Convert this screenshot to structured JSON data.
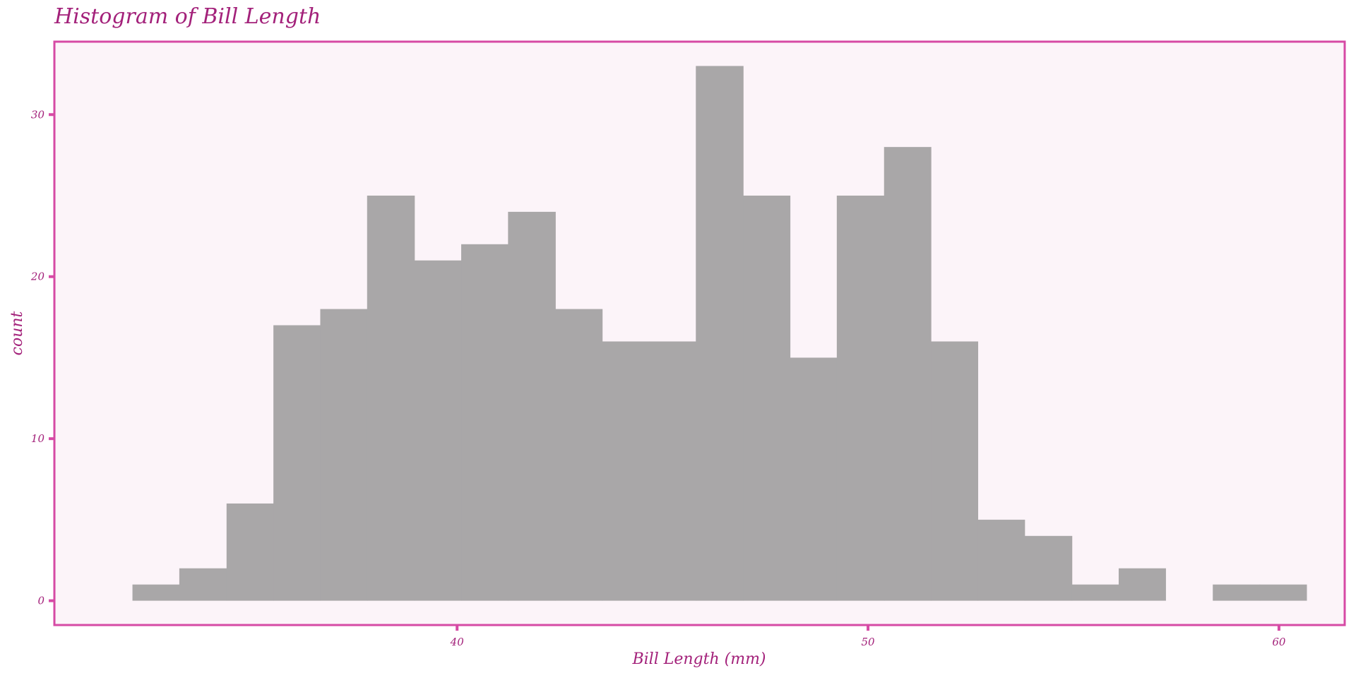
{
  "chart_data": {
    "type": "bar",
    "title": "Histogram of Bill Length",
    "xlabel": "Bill Length (mm)",
    "ylabel": "count",
    "xlim": [
      30.2,
      61.6
    ],
    "ylim": [
      -1.5,
      34.5
    ],
    "x_ticks": [
      40,
      50,
      60
    ],
    "y_ticks": [
      0,
      10,
      20,
      30
    ],
    "grid": false,
    "bin_width": 1.143,
    "bins": [
      {
        "start": 32.1,
        "end": 33.24,
        "count": 1
      },
      {
        "start": 33.24,
        "end": 34.39,
        "count": 2
      },
      {
        "start": 34.39,
        "end": 35.53,
        "count": 6
      },
      {
        "start": 35.53,
        "end": 36.67,
        "count": 17
      },
      {
        "start": 36.67,
        "end": 37.81,
        "count": 18
      },
      {
        "start": 37.81,
        "end": 38.96,
        "count": 25
      },
      {
        "start": 38.96,
        "end": 40.1,
        "count": 21
      },
      {
        "start": 40.1,
        "end": 41.24,
        "count": 22
      },
      {
        "start": 41.24,
        "end": 42.39,
        "count": 24
      },
      {
        "start": 42.39,
        "end": 43.53,
        "count": 18
      },
      {
        "start": 43.53,
        "end": 44.67,
        "count": 16
      },
      {
        "start": 44.67,
        "end": 45.81,
        "count": 16
      },
      {
        "start": 45.81,
        "end": 46.96,
        "count": 33
      },
      {
        "start": 46.96,
        "end": 48.1,
        "count": 25
      },
      {
        "start": 48.1,
        "end": 49.24,
        "count": 15
      },
      {
        "start": 49.24,
        "end": 50.39,
        "count": 25
      },
      {
        "start": 50.39,
        "end": 51.53,
        "count": 28
      },
      {
        "start": 51.53,
        "end": 52.67,
        "count": 16
      },
      {
        "start": 52.67,
        "end": 53.81,
        "count": 5
      },
      {
        "start": 53.81,
        "end": 54.96,
        "count": 4
      },
      {
        "start": 54.96,
        "end": 56.1,
        "count": 1
      },
      {
        "start": 56.1,
        "end": 57.24,
        "count": 2
      },
      {
        "start": 57.24,
        "end": 58.39,
        "count": 0
      },
      {
        "start": 58.39,
        "end": 59.53,
        "count": 1
      },
      {
        "start": 59.53,
        "end": 60.67,
        "count": 1
      }
    ],
    "colors": {
      "bar": "#a9a7a8",
      "panel_background": "#fcf4f9",
      "panel_border": "#d64aa5",
      "text": "#a3217a",
      "ticks": "#d64aa5"
    }
  }
}
